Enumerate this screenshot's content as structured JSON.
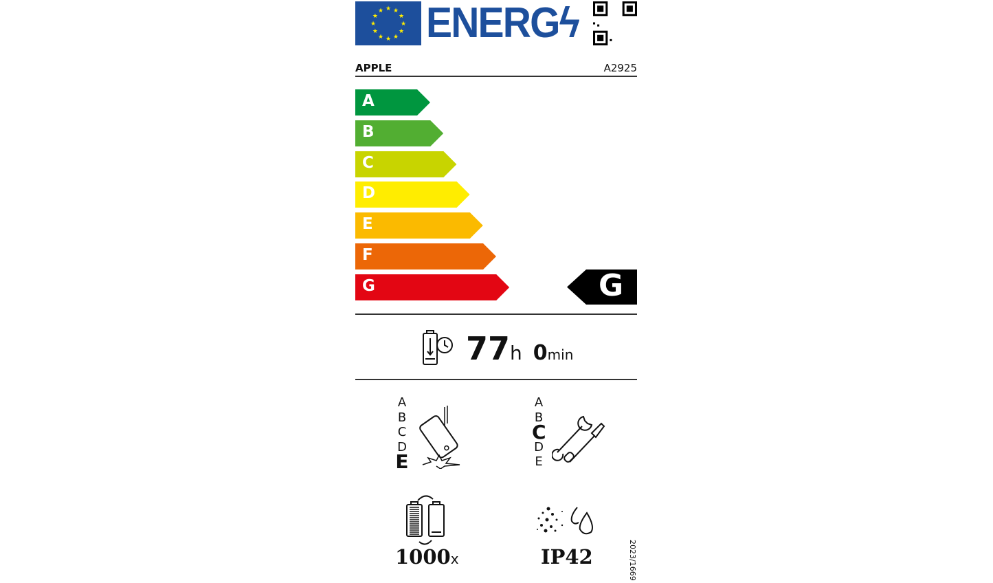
{
  "header": {
    "logo_text": "ENERG",
    "brand": "APPLE",
    "model": "A2925"
  },
  "energy_classes": [
    {
      "label": "A",
      "color": "#00963f"
    },
    {
      "label": "B",
      "color": "#52ae32"
    },
    {
      "label": "C",
      "color": "#c8d400"
    },
    {
      "label": "D",
      "color": "#ffed00"
    },
    {
      "label": "E",
      "color": "#fbba00"
    },
    {
      "label": "F",
      "color": "#ec6707"
    },
    {
      "label": "G",
      "color": "#e30613"
    }
  ],
  "rating": "G",
  "battery_endurance": {
    "hours": "77",
    "hours_unit": "h",
    "minutes": "0",
    "minutes_unit": "min"
  },
  "drop_resistance": {
    "scale": [
      "A",
      "B",
      "C",
      "D",
      "E"
    ],
    "selected": "E"
  },
  "repairability": {
    "scale": [
      "A",
      "B",
      "C",
      "D",
      "E"
    ],
    "selected": "C"
  },
  "battery_cycles": {
    "value": "1000",
    "unit": "x"
  },
  "ingress_protection": "IP42",
  "regulation": "2023/1669",
  "colors": {
    "eu_blue": "#1d4f9c",
    "eu_star": "#ffed00"
  }
}
